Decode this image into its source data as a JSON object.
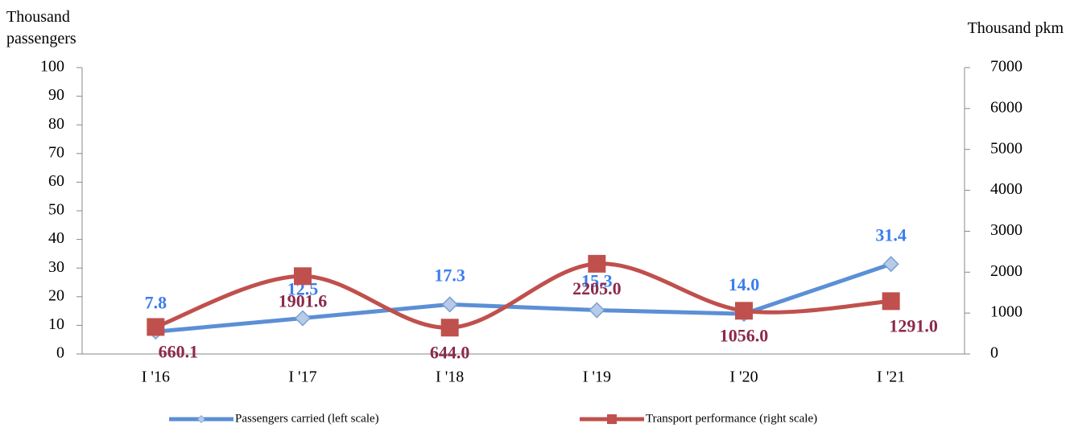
{
  "chart_data": {
    "type": "line",
    "y_label": "Thousand passengers",
    "y2_label": "Thousand pkm",
    "categories": [
      "I '16",
      "I '17",
      "I '18",
      "I '19",
      "I '20",
      "I '21"
    ],
    "series": [
      {
        "name": "Passengers carried (left scale)",
        "color": "#5b8fd6",
        "marker": "diamond",
        "label_color": "#3b7ded",
        "smooth": false,
        "values": [
          7.8,
          12.5,
          17.3,
          15.3,
          14,
          31.4
        ],
        "value_labels": [
          "7.8",
          "12.5",
          "17.3",
          "15.3",
          "14.0",
          "31.4"
        ]
      },
      {
        "name": "Transport performance (right scale)",
        "color": "#c0504d",
        "marker": "square",
        "label_color": "#8b2a4a",
        "smooth": true,
        "axis": "y2",
        "values": [
          660.1,
          1901.6,
          644,
          2205,
          1056,
          1291
        ],
        "value_labels": [
          "660.1",
          "1901.6",
          "644.0",
          "2205.0",
          "1056.0",
          "1291.0"
        ]
      }
    ],
    "ylim": [
      0,
      100
    ],
    "yticks": [
      0,
      10,
      20,
      30,
      40,
      50,
      60,
      70,
      80,
      90,
      100
    ],
    "y2lim": [
      0,
      7000
    ],
    "y2ticks": [
      0,
      1000,
      2000,
      3000,
      4000,
      5000,
      6000,
      7000
    ],
    "grid": false
  }
}
